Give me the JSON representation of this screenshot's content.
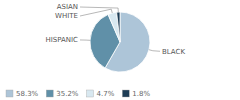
{
  "chart_data": {
    "type": "pie",
    "categories": [
      "BLACK",
      "HISPANIC",
      "WHITE",
      "ASIAN"
    ],
    "values": [
      58.3,
      35.2,
      4.7,
      1.8
    ],
    "value_labels": [
      "58.3%",
      "35.2%",
      "4.7%",
      "1.8%"
    ],
    "colors": [
      "#adc5d8",
      "#6090a8",
      "#d8e8f0",
      "#1e3d55"
    ],
    "legend": "lower left"
  }
}
